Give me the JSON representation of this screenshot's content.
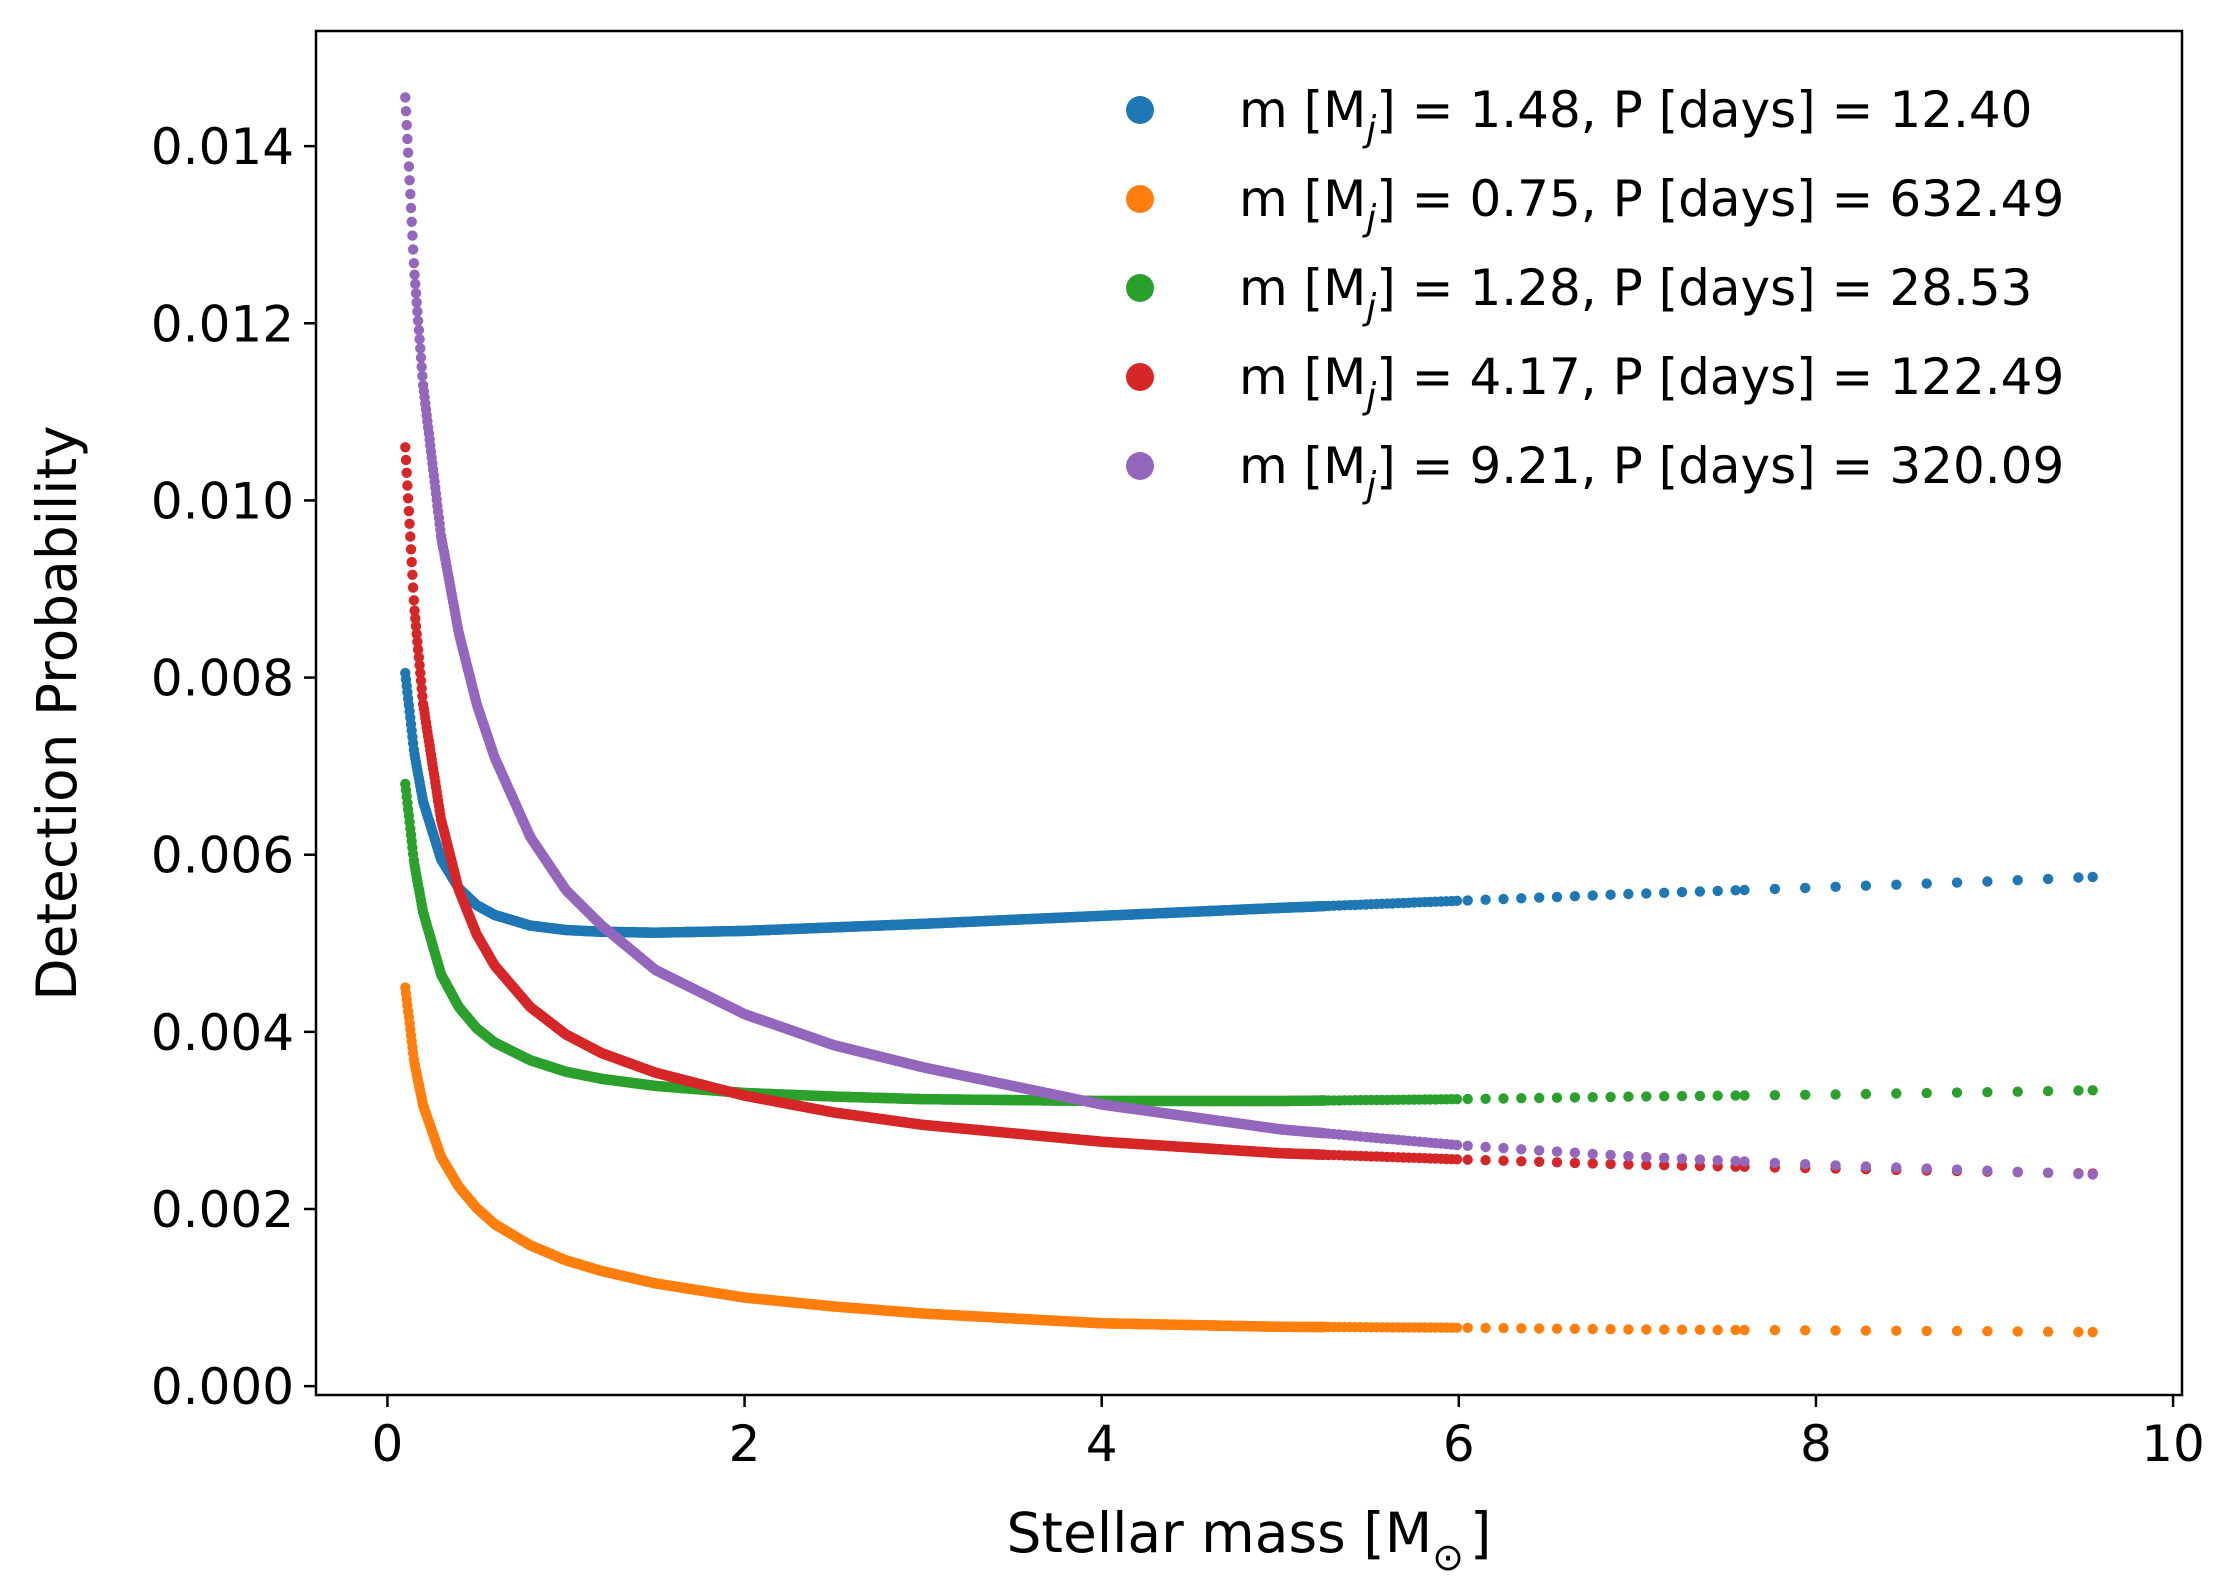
{
  "chart_data": {
    "type": "scatter",
    "xlabel": {
      "text": "Stellar mass [M",
      "sub": "⊙",
      "close": "]"
    },
    "ylabel": "Detection Probability",
    "xlim": [
      -0.4,
      10.05
    ],
    "ylim": [
      -0.0001,
      0.0153
    ],
    "xticks": [
      0,
      2,
      4,
      6,
      8,
      10
    ],
    "xtick_labels": [
      "0",
      "2",
      "4",
      "6",
      "8",
      "10"
    ],
    "yticks": [
      0.0,
      0.002,
      0.004,
      0.006,
      0.008,
      0.01,
      0.012,
      0.014
    ],
    "ytick_labels": [
      "0.000",
      "0.002",
      "0.004",
      "0.006",
      "0.008",
      "0.010",
      "0.012",
      "0.014"
    ],
    "grid": false,
    "legend_position": "top-right",
    "x_range_of_points": [
      0.1,
      9.55
    ],
    "series": [
      {
        "name": "m [Mj] = 1.48, P [days] = 12.40",
        "legend": {
          "pre": "m [M",
          "sub": "j",
          "post": "] = 1.48, P [days] = 12.40"
        },
        "color": "#1f77b4",
        "x": [
          0.1,
          0.15,
          0.2,
          0.3,
          0.4,
          0.5,
          0.6,
          0.8,
          1.0,
          1.2,
          1.5,
          2.0,
          2.5,
          3.0,
          4.0,
          5.0,
          6.0,
          7.0,
          8.0,
          9.0,
          9.55
        ],
        "y": [
          0.00805,
          0.00715,
          0.0066,
          0.00595,
          0.00562,
          0.00543,
          0.00532,
          0.0052,
          0.00515,
          0.00513,
          0.00512,
          0.00514,
          0.00518,
          0.00522,
          0.00531,
          0.0054,
          0.00548,
          0.00556,
          0.00563,
          0.0057,
          0.00575
        ]
      },
      {
        "name": "m [Mj] = 0.75, P [days] = 632.49",
        "legend": {
          "pre": "m [M",
          "sub": "j",
          "post": "] = 0.75, P [days] = 632.49"
        },
        "color": "#ff7f0e",
        "x": [
          0.1,
          0.15,
          0.2,
          0.3,
          0.4,
          0.5,
          0.6,
          0.8,
          1.0,
          1.2,
          1.5,
          2.0,
          2.5,
          3.0,
          4.0,
          5.0,
          6.0,
          7.0,
          8.0,
          9.0,
          9.55
        ],
        "y": [
          0.0045,
          0.00366,
          0.00317,
          0.00259,
          0.00225,
          0.00201,
          0.00183,
          0.00159,
          0.00142,
          0.0013,
          0.00116,
          0.001,
          0.0009,
          0.00082,
          0.00071,
          0.00067,
          0.00066,
          0.00064,
          0.00063,
          0.00062,
          0.00061
        ]
      },
      {
        "name": "m [Mj] = 1.28, P [days] = 28.53",
        "legend": {
          "pre": "m [M",
          "sub": "j",
          "post": "] = 1.28, P [days] = 28.53"
        },
        "color": "#2ca02c",
        "x": [
          0.1,
          0.15,
          0.2,
          0.3,
          0.4,
          0.5,
          0.6,
          0.8,
          1.0,
          1.2,
          1.5,
          2.0,
          2.5,
          3.0,
          4.0,
          5.0,
          6.0,
          7.0,
          8.0,
          9.0,
          9.55
        ],
        "y": [
          0.0068,
          0.0059,
          0.00535,
          0.00465,
          0.00428,
          0.00404,
          0.00388,
          0.00368,
          0.00355,
          0.00347,
          0.00339,
          0.00331,
          0.00327,
          0.00324,
          0.00322,
          0.00322,
          0.00324,
          0.00327,
          0.00329,
          0.00332,
          0.00334
        ]
      },
      {
        "name": "m [Mj] = 4.17, P [days] = 122.49",
        "legend": {
          "pre": "m [M",
          "sub": "j",
          "post": "] = 4.17, P [days] = 122.49"
        },
        "color": "#d62728",
        "x": [
          0.1,
          0.15,
          0.2,
          0.3,
          0.4,
          0.5,
          0.6,
          0.8,
          1.0,
          1.2,
          1.5,
          2.0,
          2.5,
          3.0,
          4.0,
          5.0,
          6.0,
          7.0,
          8.0,
          9.0,
          9.55
        ],
        "y": [
          0.0106,
          0.0088,
          0.0077,
          0.0064,
          0.0056,
          0.0051,
          0.00475,
          0.00428,
          0.00397,
          0.00376,
          0.00354,
          0.00328,
          0.00309,
          0.00295,
          0.00276,
          0.00263,
          0.00256,
          0.0025,
          0.00246,
          0.00242,
          0.0024
        ]
      },
      {
        "name": "m [Mj] = 9.21, P [days] = 320.09",
        "legend": {
          "pre": "m [M",
          "sub": "j",
          "post": "] = 9.21, P [days] = 320.09"
        },
        "color": "#9467bd",
        "x": [
          0.1,
          0.15,
          0.2,
          0.3,
          0.4,
          0.5,
          0.6,
          0.8,
          1.0,
          1.2,
          1.5,
          2.0,
          2.5,
          3.0,
          4.0,
          5.0,
          6.0,
          7.0,
          8.0,
          9.0,
          9.55
        ],
        "y": [
          0.01455,
          0.0126,
          0.0113,
          0.0096,
          0.0085,
          0.0077,
          0.0071,
          0.0062,
          0.0056,
          0.0052,
          0.0047,
          0.0042,
          0.00385,
          0.0036,
          0.00318,
          0.0029,
          0.00272,
          0.00259,
          0.0025,
          0.00243,
          0.00239
        ]
      }
    ]
  }
}
